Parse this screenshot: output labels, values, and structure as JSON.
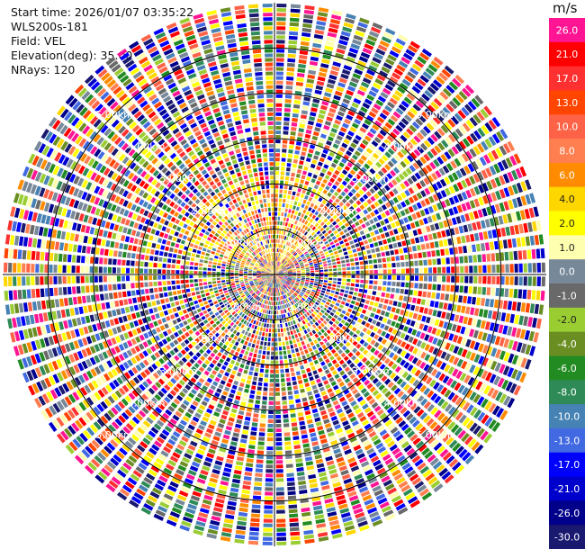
{
  "info": {
    "start_time": "Start time: 2026/01/07 03:35:22",
    "instrument": "WLS200s-181",
    "field": "Field: VEL",
    "elevation": "Elevation(deg): 35.00",
    "nrays": "NRays: 120"
  },
  "colorbar": {
    "unit": "m/s",
    "bins": [
      {
        "label": "26.0",
        "color": "#ff1493"
      },
      {
        "label": "21.0",
        "color": "#ff0000"
      },
      {
        "label": "17.0",
        "color": "#ff3030"
      },
      {
        "label": "13.0",
        "color": "#ff4500"
      },
      {
        "label": "10.0",
        "color": "#ff6347"
      },
      {
        "label": "8.0",
        "color": "#ff7f50"
      },
      {
        "label": "6.0",
        "color": "#ff8c00"
      },
      {
        "label": "4.0",
        "color": "#ffd700"
      },
      {
        "label": "2.0",
        "color": "#ffff00"
      },
      {
        "label": "1.0",
        "color": "#ffffb0"
      },
      {
        "label": "0.0",
        "color": "#778899"
      },
      {
        "label": "-1.0",
        "color": "#696969"
      },
      {
        "label": "-2.0",
        "color": "#9acd32"
      },
      {
        "label": "-4.0",
        "color": "#6b8e23"
      },
      {
        "label": "-6.0",
        "color": "#228b22"
      },
      {
        "label": "-8.0",
        "color": "#2e8b57"
      },
      {
        "label": "-10.0",
        "color": "#4682b4"
      },
      {
        "label": "-13.0",
        "color": "#4169e1"
      },
      {
        "label": "-17.0",
        "color": "#0000ff"
      },
      {
        "label": "-21.0",
        "color": "#0000cd"
      },
      {
        "label": "-26.0",
        "color": "#00008b"
      },
      {
        "label": "-30.0",
        "color": "#191970"
      }
    ]
  },
  "chart_data": {
    "type": "heatmap",
    "projection": "polar-ppi",
    "field": "VEL",
    "unit": "m/s",
    "nrays": 120,
    "range_rings_km": [
      1,
      2,
      3,
      4,
      5
    ],
    "ring_labels": [
      "1.00km",
      "2.00km",
      "3.00km",
      "4.00km",
      "5.00km"
    ],
    "max_range_km": 6.0,
    "value_range": [
      -30.0,
      26.0
    ]
  }
}
